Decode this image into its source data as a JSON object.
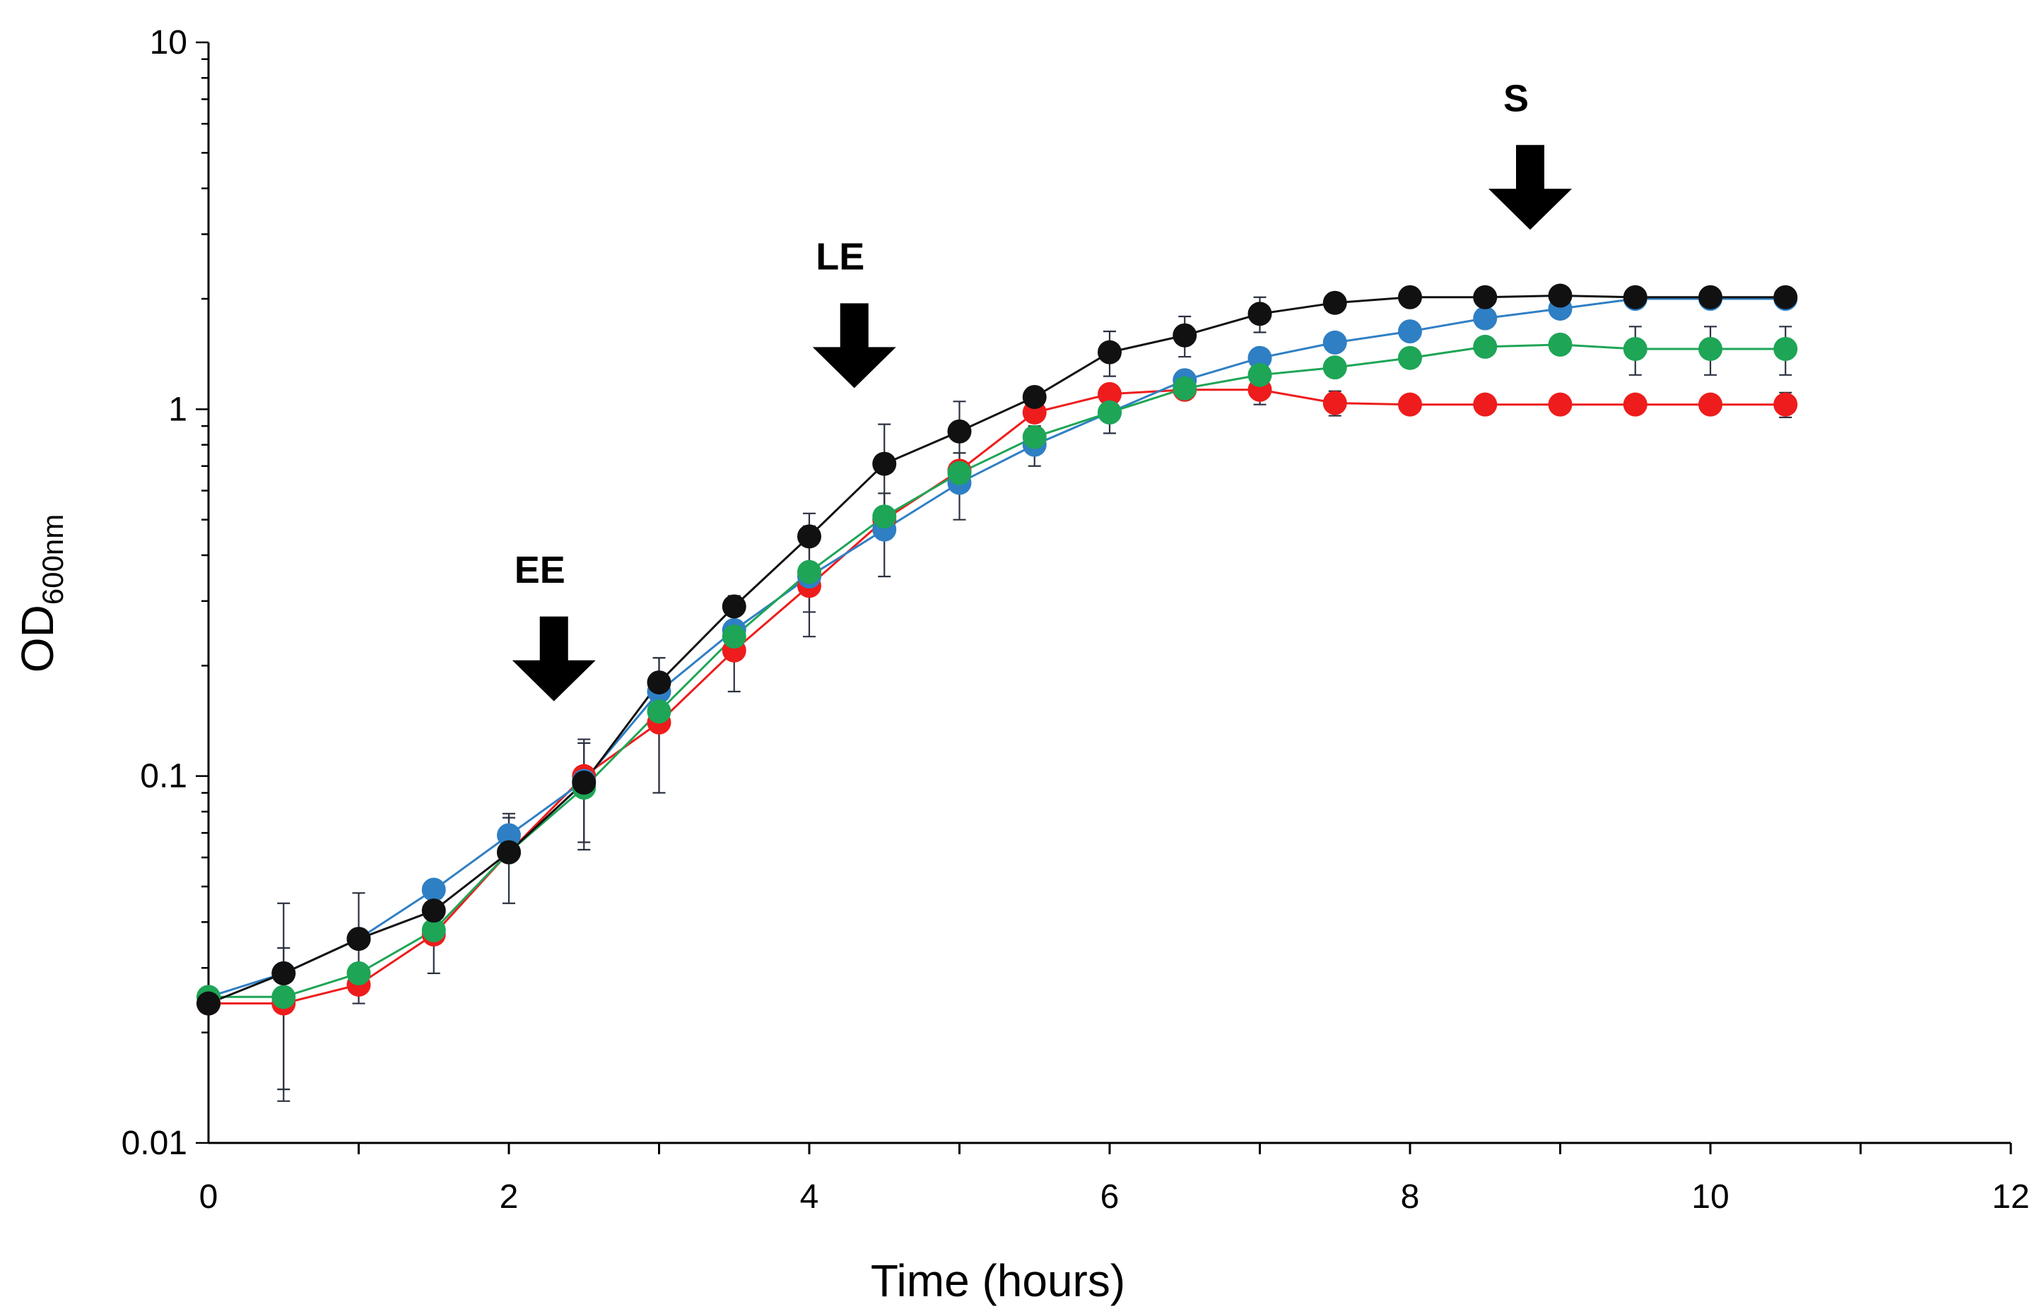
{
  "chart_data": {
    "type": "line",
    "title": "",
    "xlabel": "Time (hours)",
    "ylabel": "OD",
    "ylabel_subscript": "600nm",
    "xlim": [
      0,
      12
    ],
    "ylim": [
      0.01,
      10
    ],
    "yscale": "log",
    "grid": false,
    "xticks": [
      {
        "value": 0,
        "label": "0"
      },
      {
        "value": 2,
        "label": "2"
      },
      {
        "value": 4,
        "label": "4"
      },
      {
        "value": 6,
        "label": "6"
      },
      {
        "value": 8,
        "label": "8"
      },
      {
        "value": 10,
        "label": "10"
      },
      {
        "value": 12,
        "label": "12"
      }
    ],
    "yticks": [
      {
        "value": 0.01,
        "label": "0.01"
      },
      {
        "value": 0.1,
        "label": "0.1"
      },
      {
        "value": 1,
        "label": "1"
      },
      {
        "value": 10,
        "label": "10"
      }
    ],
    "x": [
      0,
      0.5,
      1,
      1.5,
      2,
      2.5,
      3,
      3.5,
      4,
      4.5,
      5,
      5.5,
      6,
      6.5,
      7,
      7.5,
      8,
      8.5,
      9,
      9.5,
      10,
      10.5
    ],
    "series": [
      {
        "name": "red",
        "color": "#ee1c1c",
        "values": [
          0.024,
          0.024,
          0.027,
          0.037,
          0.062,
          0.1,
          0.14,
          0.22,
          0.33,
          0.5,
          0.68,
          0.98,
          1.1,
          1.13,
          1.13,
          1.04,
          1.03,
          1.03,
          1.03,
          1.03,
          1.03,
          1.03
        ],
        "errors": [
          0.0,
          0.01,
          0.0,
          0.0,
          0.0,
          0.0,
          0.05,
          0.0,
          0.05,
          0.0,
          0.0,
          0.0,
          0.0,
          0.0,
          0.1,
          0.08,
          0.06,
          0.06,
          0.06,
          0.06,
          0.06,
          0.08
        ]
      },
      {
        "name": "blue",
        "color": "#2f7fc4",
        "values": [
          0.025,
          0.029,
          0.036,
          0.049,
          0.069,
          0.097,
          0.17,
          0.25,
          0.35,
          0.47,
          0.63,
          0.8,
          0.98,
          1.2,
          1.38,
          1.52,
          1.63,
          1.77,
          1.88,
          2.0,
          2.0,
          2.0
        ],
        "errors": [
          0.0,
          0.0,
          0.0,
          0.0,
          0.008,
          0.0,
          0.0,
          0.0,
          0.0,
          0.12,
          0.13,
          0.1,
          0.0,
          0.0,
          0.0,
          0.0,
          0.0,
          0.0,
          0.0,
          0.0,
          0.0,
          0.0
        ]
      },
      {
        "name": "green",
        "color": "#1ea556",
        "values": [
          0.025,
          0.025,
          0.029,
          0.038,
          0.062,
          0.093,
          0.15,
          0.24,
          0.36,
          0.51,
          0.67,
          0.84,
          0.98,
          1.14,
          1.24,
          1.3,
          1.38,
          1.48,
          1.5,
          1.46,
          1.46,
          1.46
        ],
        "errors": [
          0.0,
          0.0,
          0.0,
          0.009,
          0.017,
          0.03,
          0.06,
          0.07,
          0.12,
          0.0,
          0.0,
          0.0,
          0.12,
          0.0,
          0.0,
          0.0,
          0.0,
          0.0,
          0.0,
          0.22,
          0.22,
          0.22
        ]
      },
      {
        "name": "black",
        "color": "#111111",
        "values": [
          0.024,
          0.029,
          0.036,
          0.043,
          0.062,
          0.096,
          0.18,
          0.29,
          0.45,
          0.71,
          0.87,
          1.08,
          1.43,
          1.59,
          1.82,
          1.95,
          2.02,
          2.02,
          2.04,
          2.02,
          2.02,
          2.02
        ],
        "errors": [
          0.0,
          0.016,
          0.012,
          0.0,
          0.0,
          0.03,
          0.03,
          0.0,
          0.07,
          0.2,
          0.18,
          0.0,
          0.2,
          0.2,
          0.2,
          0.0,
          0.0,
          0.0,
          0.0,
          0.0,
          0.0,
          0.0
        ]
      }
    ],
    "annotations": [
      {
        "text": "EE",
        "x": 2.3,
        "y": 0.14
      },
      {
        "text": "LE",
        "x": 4.3,
        "y": 1.0
      },
      {
        "text": "S",
        "x": 8.8,
        "y": 2.7
      }
    ]
  }
}
